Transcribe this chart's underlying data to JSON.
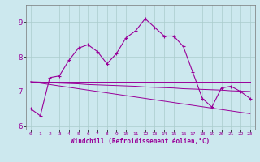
{
  "xlabel": "Windchill (Refroidissement éolien,°C)",
  "background_color": "#cce8ee",
  "grid_color": "#aacccc",
  "line_color": "#990099",
  "x_ticks": [
    0,
    1,
    2,
    3,
    4,
    5,
    6,
    7,
    8,
    9,
    10,
    11,
    12,
    13,
    14,
    15,
    16,
    17,
    18,
    19,
    20,
    21,
    22,
    23
  ],
  "ylim": [
    5.9,
    9.5
  ],
  "xlim": [
    -0.5,
    23.5
  ],
  "yticks": [
    6,
    7,
    8,
    9
  ],
  "curve1_x": [
    0,
    1,
    2,
    3,
    4,
    5,
    6,
    7,
    8,
    9,
    10,
    11,
    12,
    13,
    14,
    15,
    16,
    17,
    18,
    19,
    20,
    21,
    22,
    23
  ],
  "curve1_y": [
    6.5,
    6.3,
    7.4,
    7.45,
    7.9,
    8.25,
    8.35,
    8.15,
    7.8,
    8.1,
    8.55,
    8.75,
    9.1,
    8.85,
    8.6,
    8.6,
    8.3,
    7.55,
    6.8,
    6.55,
    7.1,
    7.15,
    7.0,
    6.8
  ],
  "curve2_x": [
    0,
    1,
    2,
    3,
    4,
    5,
    6,
    7,
    8,
    9,
    10,
    11,
    12,
    13,
    14,
    15,
    16,
    17,
    18,
    19,
    20,
    21,
    22,
    23
  ],
  "curve2_y": [
    7.28,
    7.28,
    7.28,
    7.28,
    7.28,
    7.28,
    7.28,
    7.28,
    7.28,
    7.28,
    7.28,
    7.28,
    7.28,
    7.28,
    7.28,
    7.28,
    7.28,
    7.28,
    7.28,
    7.28,
    7.28,
    7.28,
    7.28,
    7.28
  ],
  "curve3_x": [
    0,
    1,
    2,
    3,
    4,
    5,
    6,
    7,
    8,
    9,
    10,
    11,
    12,
    13,
    14,
    15,
    16,
    17,
    18,
    19,
    20,
    21,
    22,
    23
  ],
  "curve3_y": [
    7.28,
    7.27,
    7.25,
    7.24,
    7.23,
    7.22,
    7.2,
    7.19,
    7.18,
    7.17,
    7.16,
    7.15,
    7.13,
    7.12,
    7.11,
    7.1,
    7.08,
    7.07,
    7.06,
    7.05,
    7.04,
    7.02,
    7.01,
    7.0
  ],
  "curve4_x": [
    0,
    1,
    2,
    3,
    4,
    5,
    6,
    7,
    8,
    9,
    10,
    11,
    12,
    13,
    14,
    15,
    16,
    17,
    18,
    19,
    20,
    21,
    22,
    23
  ],
  "curve4_y": [
    7.28,
    7.24,
    7.2,
    7.16,
    7.12,
    7.08,
    7.04,
    7.0,
    6.96,
    6.92,
    6.88,
    6.84,
    6.8,
    6.76,
    6.72,
    6.68,
    6.64,
    6.6,
    6.56,
    6.52,
    6.48,
    6.44,
    6.4,
    6.36
  ]
}
